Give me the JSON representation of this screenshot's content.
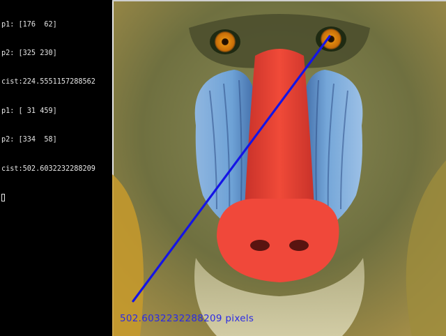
{
  "terminal": {
    "lines": [
      "p1: [176  62]",
      "p2: [325 230]",
      "cist:224.5551157288562",
      "p1: [ 31 459]",
      "p2: [334  58]",
      "cist:502.6032232288209"
    ]
  },
  "viewer": {
    "distance_label": "502.6032232288209 pixels",
    "line_color": "#1414e6",
    "label_color": "#2a2ae6",
    "image_subject": "mandrill face"
  }
}
